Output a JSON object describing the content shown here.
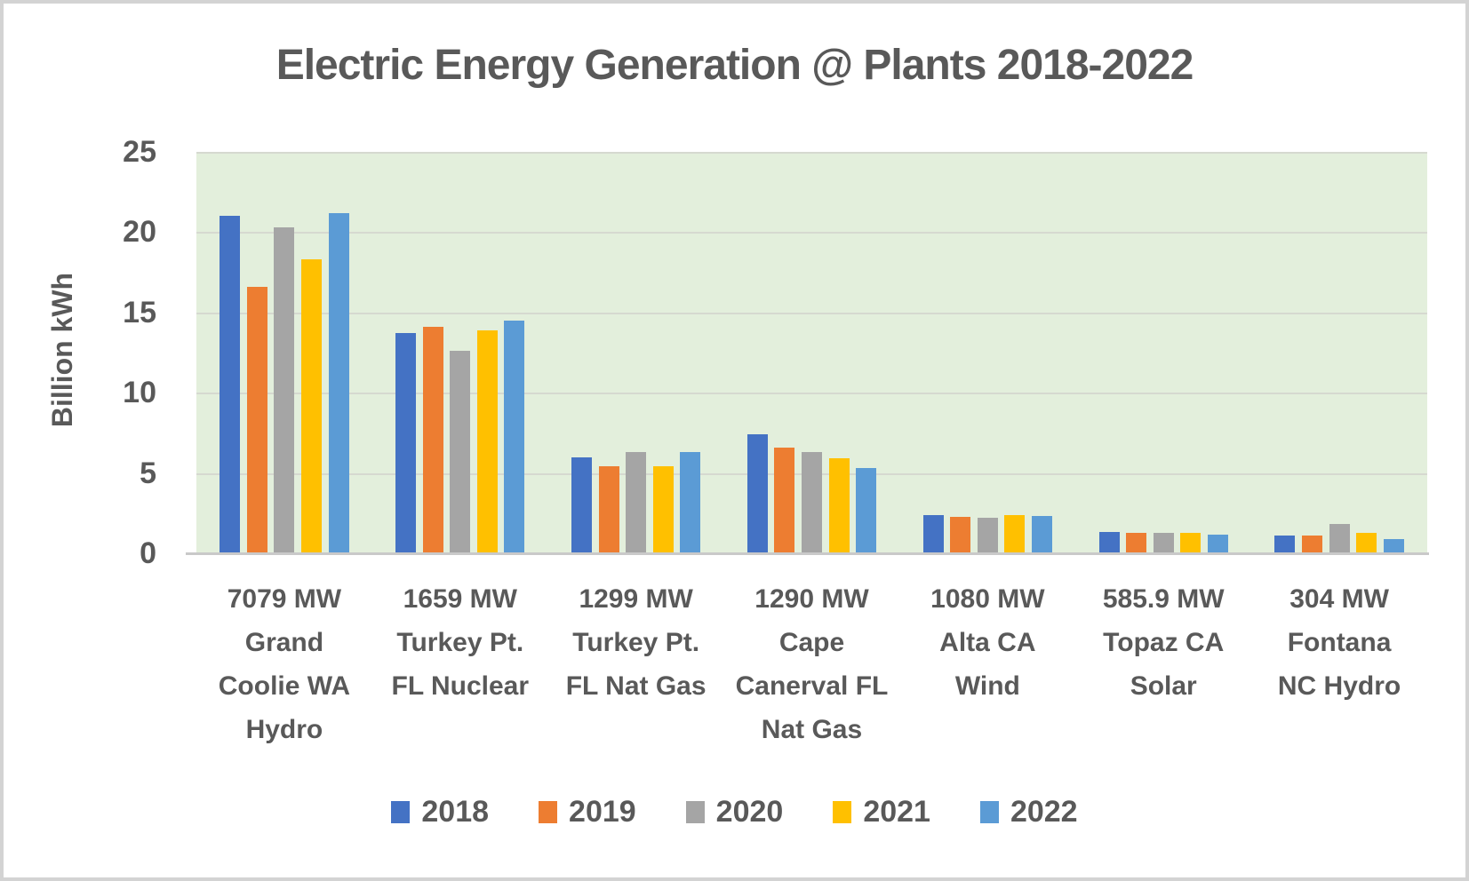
{
  "chart_data": {
    "type": "bar",
    "title": "Electric Energy Generation @ Plants 2018-2022",
    "ylabel": "Billion kWh",
    "xlabel": "",
    "ylim": [
      0,
      25
    ],
    "yticks": [
      0,
      5,
      10,
      15,
      20,
      25
    ],
    "grid": true,
    "legend_position": "bottom",
    "plot_bg": "#E3EFDC",
    "categories": [
      "7079 MW Grand Coolie WA Hydro",
      "1659 MW Turkey Pt. FL Nuclear",
      "1299 MW Turkey Pt. FL Nat Gas",
      "1290 MW Cape Canerval FL Nat Gas",
      "1080 MW Alta CA Wind",
      "585.9 MW Topaz CA Solar",
      "304 MW Fontana NC Hydro"
    ],
    "category_lines": [
      [
        "7079 MW",
        "Grand",
        "Coolie WA",
        "Hydro"
      ],
      [
        "1659 MW",
        "Turkey Pt.",
        "FL Nuclear"
      ],
      [
        "1299 MW",
        "Turkey Pt.",
        "FL Nat Gas"
      ],
      [
        "1290 MW",
        "Cape",
        "Canerval FL",
        "Nat Gas"
      ],
      [
        "1080 MW",
        "Alta CA",
        "Wind"
      ],
      [
        "585.9 MW",
        "Topaz CA",
        "Solar"
      ],
      [
        "304 MW",
        "Fontana",
        "NC Hydro"
      ]
    ],
    "series": [
      {
        "name": "2018",
        "color": "#4472C4",
        "values": [
          21.0,
          13.7,
          6.0,
          7.4,
          2.4,
          1.35,
          1.1
        ]
      },
      {
        "name": "2019",
        "color": "#ED7D31",
        "values": [
          16.6,
          14.1,
          5.4,
          6.6,
          2.25,
          1.25,
          1.1
        ]
      },
      {
        "name": "2020",
        "color": "#A5A5A5",
        "values": [
          20.3,
          12.6,
          6.3,
          6.3,
          2.2,
          1.25,
          1.8
        ]
      },
      {
        "name": "2021",
        "color": "#FFC000",
        "values": [
          18.3,
          13.9,
          5.4,
          5.9,
          2.4,
          1.25,
          1.3
        ]
      },
      {
        "name": "2022",
        "color": "#5B9BD5",
        "values": [
          21.2,
          14.5,
          6.3,
          5.3,
          2.3,
          1.15,
          0.9
        ]
      }
    ]
  },
  "colors": {
    "text": "#595959",
    "gridline": "#D6D9D0",
    "axis_line": "#C9C9C9",
    "frame_border": "#D3D3D3"
  }
}
